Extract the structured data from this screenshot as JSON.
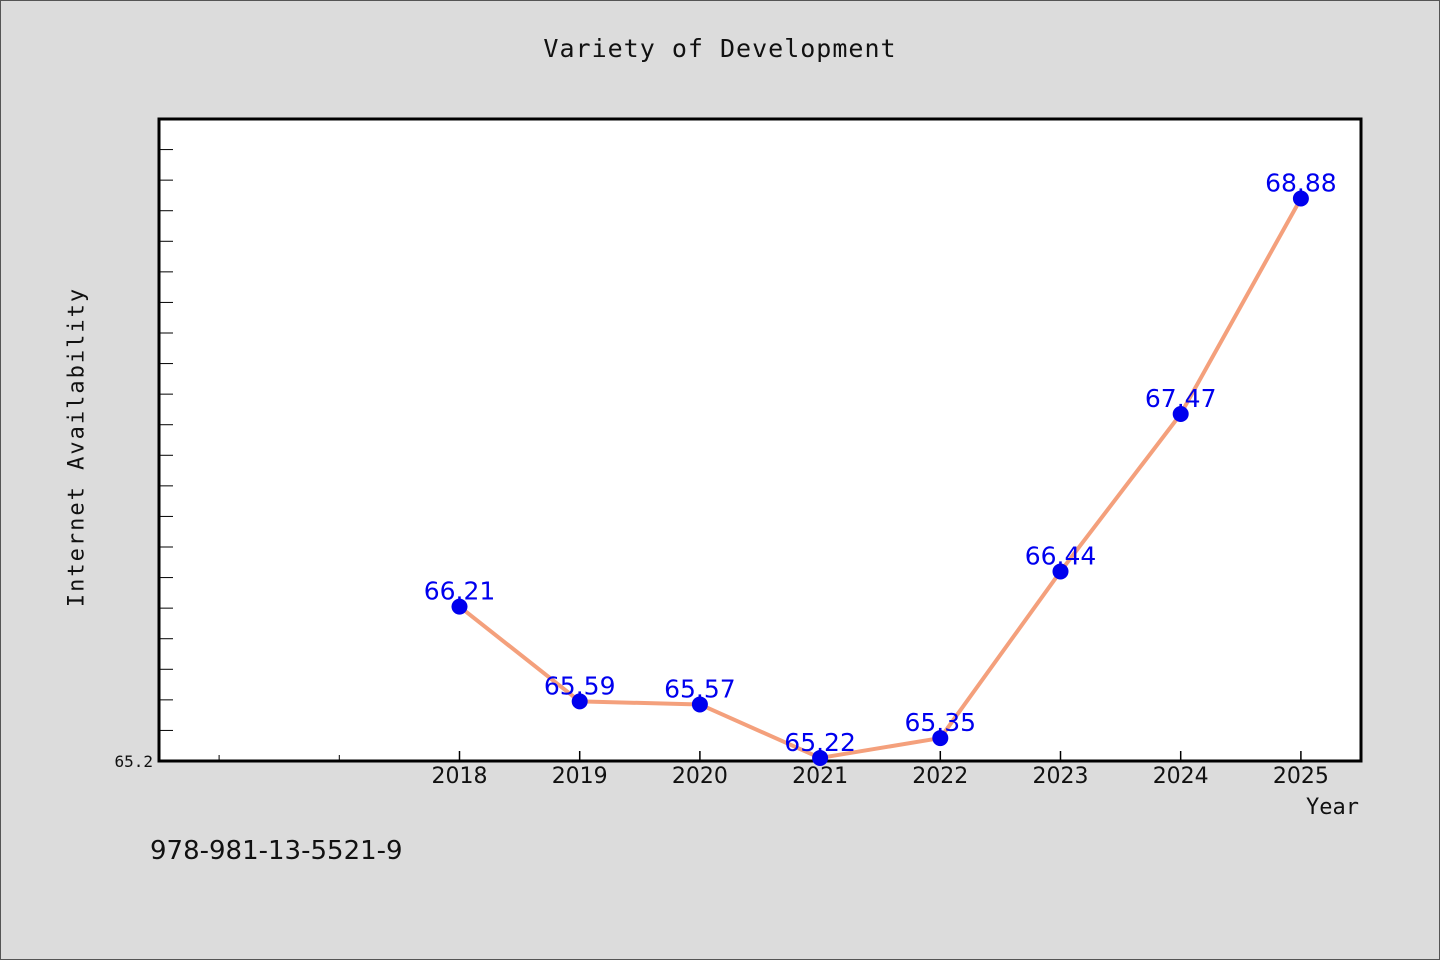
{
  "chart_data": {
    "type": "line",
    "title": "Variety of Development",
    "xlabel": "Year",
    "ylabel": "Internet Availability",
    "categories": [
      "2018",
      "2019",
      "2020",
      "2021",
      "2022",
      "2023",
      "2024",
      "2025"
    ],
    "series": [
      {
        "values": [
          66.21,
          65.59,
          65.57,
          65.22,
          65.35,
          66.44,
          67.47,
          68.88
        ],
        "data_labels": [
          "66.21",
          "65.59",
          "65.57",
          "65.22",
          "65.35",
          "66.44",
          "67.47",
          "68.88"
        ]
      }
    ],
    "y_tick_labels": [
      "65.2"
    ],
    "ylim": [
      65.2,
      69.4
    ],
    "xlim": [
      2015.5,
      2025.5
    ],
    "grid": false,
    "line_color": "#f4a07c",
    "marker_color": "#0000ee",
    "label_color": "#0000ee",
    "plot_background": "#ffffff",
    "page_background": "#dcdcdc"
  },
  "footer": {
    "code": "978-981-13-5521-9"
  }
}
